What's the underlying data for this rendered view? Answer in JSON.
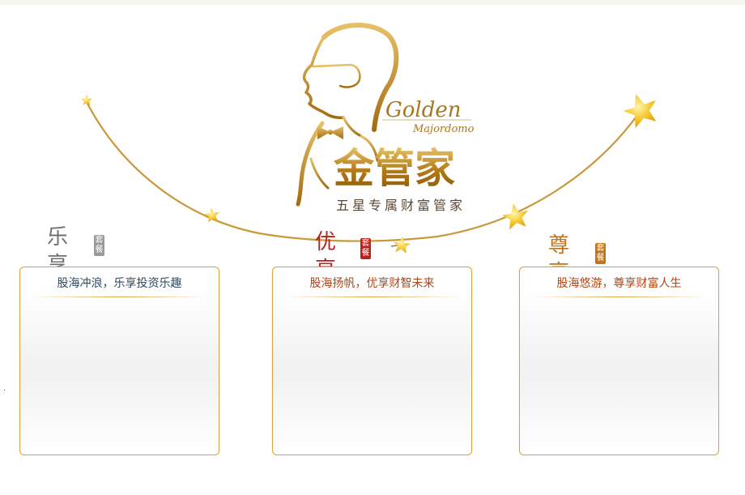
{
  "brand": {
    "logo_script_line1": "Golden",
    "logo_script_line2": "Majordomo",
    "name": "金管家",
    "tagline": "五星专属财富管家"
  },
  "packages": [
    {
      "name": "乐享",
      "seal": "套餐",
      "slogan": "股海冲浪，乐享投资乐趣"
    },
    {
      "name": "优享",
      "seal": "套餐",
      "slogan": "股海扬帆，优享财智未来"
    },
    {
      "name": "尊享",
      "seal": "套餐",
      "slogan": "股海悠游，尊享财富人生"
    }
  ],
  "colors": {
    "gold": "#d9a441",
    "arc": "#c99838",
    "star": "#f2c230",
    "le_text": "#707070",
    "you_text": "#b8241c",
    "zun_text": "#c0741c",
    "slogan_blue": "#2c4a66",
    "slogan_red": "#b24415"
  },
  "icons": [
    "gentleman-silhouette-icon",
    "star-icon"
  ]
}
